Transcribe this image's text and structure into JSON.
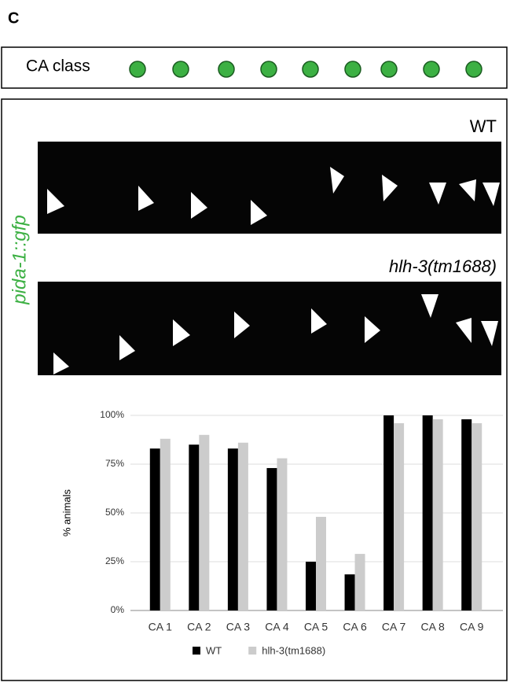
{
  "panel_label": "C",
  "class_row": {
    "label": "CA class"
  },
  "image_label": "pida-1::gfp",
  "images": [
    {
      "label": "WT"
    },
    {
      "label": "hlh-3(tm1688)"
    }
  ],
  "chart_data": {
    "type": "bar",
    "y_label": "% animals",
    "categories": [
      "CA 1",
      "CA 2",
      "CA 3",
      "CA 4",
      "CA 5",
      "CA 6",
      "CA 7",
      "CA 8",
      "CA 9"
    ],
    "series": [
      {
        "name": "WT",
        "color": "#000000",
        "values": [
          83,
          85,
          83,
          73,
          25,
          18.5,
          100,
          100,
          98
        ]
      },
      {
        "name": "hlh-3(tm1688)",
        "color": "#cccccc",
        "values": [
          88,
          90,
          86,
          78,
          48,
          29,
          96,
          98,
          96
        ]
      }
    ],
    "ylim": [
      0,
      100
    ],
    "yticks": [
      {
        "value": 0,
        "label": "0%"
      },
      {
        "value": 25,
        "label": "25%"
      },
      {
        "value": 50,
        "label": "50%"
      },
      {
        "value": 75,
        "label": "75%"
      },
      {
        "value": 100,
        "label": "100%"
      }
    ],
    "grid": true
  }
}
